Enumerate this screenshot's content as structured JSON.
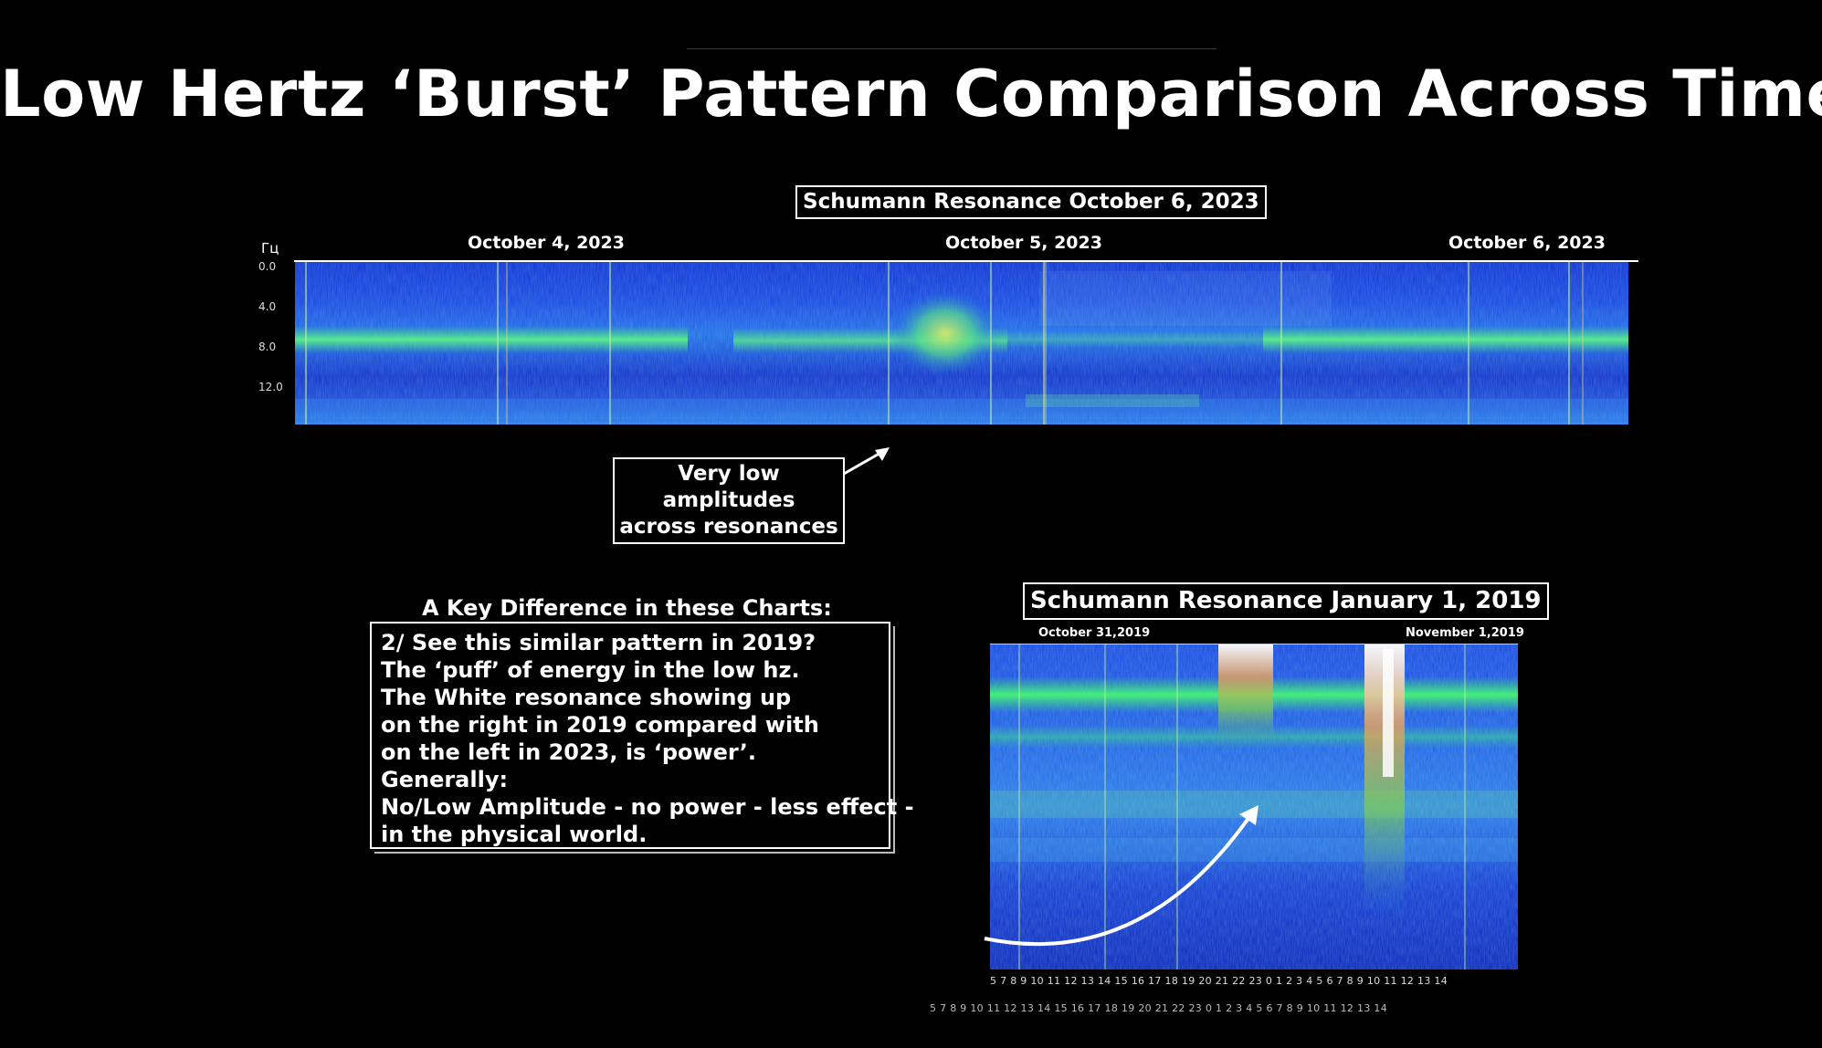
{
  "page_title": "Low Hertz ‘Burst’ Pattern Comparison Across Time",
  "top_chart": {
    "title": "Schumann Resonance October 6, 2023",
    "dates": [
      "October 4, 2023",
      "October 5, 2023",
      "October 6, 2023"
    ],
    "y_unit": "Гц",
    "y_ticks": [
      "0.0",
      "4.0",
      "8.0",
      "12.0"
    ]
  },
  "annotation": {
    "line1": "Very low amplitudes",
    "line2": "across resonances"
  },
  "key_box": {
    "heading": "A Key Difference in these Charts:",
    "lines": [
      "2/ See this similar pattern in 2019?",
      "The ‘puff’ of energy in the low hz.",
      "The White resonance showing up",
      "on the right in 2019 compared with",
      "on the left in 2023, is ‘power’.",
      "Generally:",
      "No/Low Amplitude - no power - less effect -",
      "in the physical world."
    ]
  },
  "bottom_chart": {
    "title": "Schumann Resonance January 1, 2019",
    "date_left": "October 31,2019",
    "date_right": "November 1,2019",
    "hour_row_1": "5  7  8  9  10  11  12  13  14  15  16  17  18  19  20  21  22  23  0  1  2  3  4  5  6  7  8  9  10  11  12  13  14",
    "hour_row_2": "5  7  8  9  10  11  12  13  14  15  16  17  18  19  20  21  22  23  0  1  2  3  4  5  6  7  8  9  10  11  12  13  14"
  },
  "colors": {
    "background": "#000000",
    "spectrogram_base": "#0a2bd6",
    "resonance_band": "#3ee07a",
    "burst_power": "#ffffff"
  }
}
